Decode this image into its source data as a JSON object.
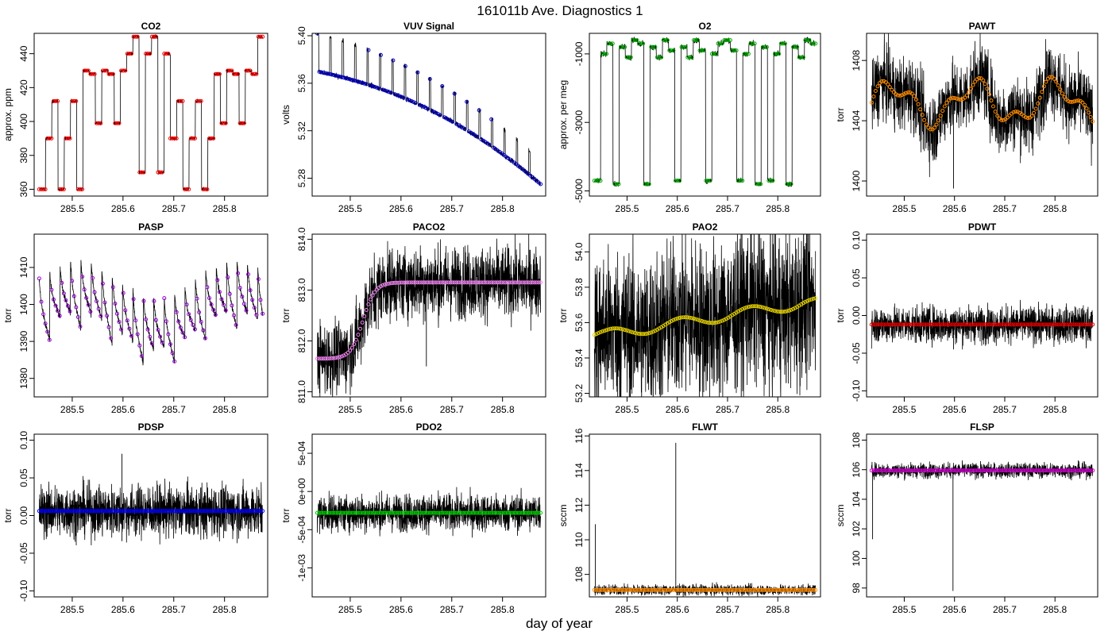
{
  "figure": {
    "title": "161011b   Ave. Diagnostics 1",
    "xlabel": "day of year"
  },
  "chart_data": [
    {
      "type": "line",
      "title": "CO2",
      "ylabel": "approx. ppm",
      "xlim": [
        285.425,
        285.885
      ],
      "ylim": [
        356,
        452
      ],
      "xticks": [
        285.5,
        285.6,
        285.7,
        285.8
      ],
      "xtick_labels": [
        "285.5",
        "285.6",
        "285.7",
        "285.8"
      ],
      "yticks": [
        360,
        380,
        400,
        420,
        440
      ],
      "ytick_labels": [
        "360",
        "380",
        "400",
        "420",
        "440"
      ],
      "marker_color": "#ff0000",
      "pattern": "steps",
      "levels": [
        360,
        399,
        450,
        390,
        430,
        370,
        412,
        428,
        440
      ],
      "noise": 0.5
    },
    {
      "type": "line",
      "title": "VUV Signal",
      "ylabel": "volts",
      "xlim": [
        285.425,
        285.885
      ],
      "ylim": [
        5.265,
        5.402
      ],
      "xticks": [
        285.5,
        285.6,
        285.7,
        285.8
      ],
      "xtick_labels": [
        "285.5",
        "285.6",
        "285.7",
        "285.8"
      ],
      "yticks": [
        5.28,
        5.32,
        5.36,
        5.4
      ],
      "ytick_labels": [
        "5.28",
        "5.32",
        "5.36",
        "5.40"
      ],
      "marker_color": "#0000cc",
      "pattern": "vuv",
      "noise": 0.001
    },
    {
      "type": "line",
      "title": "O2",
      "ylabel": "approx. per meg",
      "xlim": [
        285.425,
        285.885
      ],
      "ylim": [
        -5150,
        -400
      ],
      "xticks": [
        285.5,
        285.6,
        285.7,
        285.8
      ],
      "xtick_labels": [
        "285.5",
        "285.6",
        "285.7",
        "285.8"
      ],
      "yticks": [
        -5000,
        -3000,
        -1000
      ],
      "ytick_labels": [
        "-5000",
        "-3000",
        "-1000"
      ],
      "marker_color": "#00aa00",
      "pattern": "steps",
      "levels": [
        -4700,
        -4800,
        -600,
        -1000,
        -800,
        -900,
        -700,
        -1100
      ],
      "noise": 40
    },
    {
      "type": "line",
      "title": "PAWT",
      "ylabel": "torr",
      "xlim": [
        285.425,
        285.885
      ],
      "ylim": [
        1399,
        1409.8
      ],
      "xticks": [
        285.5,
        285.6,
        285.7,
        285.8
      ],
      "xtick_labels": [
        "285.5",
        "285.6",
        "285.7",
        "285.8"
      ],
      "yticks": [
        1400,
        1404,
        1408
      ],
      "ytick_labels": [
        "1400",
        "1404",
        "1408"
      ],
      "marker_color": "#ff8c00",
      "pattern": "wander",
      "center": 1405.2,
      "amp": 1.2,
      "noise": 1.2,
      "spike": {
        "x": 285.598,
        "y": 1399.5
      }
    },
    {
      "type": "line",
      "title": "PASP",
      "ylabel": "torr",
      "xlim": [
        285.425,
        285.885
      ],
      "ylim": [
        1375,
        1419
      ],
      "xticks": [
        285.5,
        285.6,
        285.7,
        285.8
      ],
      "xtick_labels": [
        "285.5",
        "285.6",
        "285.7",
        "285.8"
      ],
      "yticks": [
        1380,
        1390,
        1400,
        1410
      ],
      "ytick_labels": [
        "1380",
        "1390",
        "1400",
        "1410"
      ],
      "marker_color": "#9400d3",
      "pattern": "pasp",
      "noise": 0.4
    },
    {
      "type": "line",
      "title": "PACO2",
      "ylabel": "torr",
      "xlim": [
        285.425,
        285.885
      ],
      "ylim": [
        810.9,
        814.1
      ],
      "xticks": [
        285.5,
        285.6,
        285.7,
        285.8
      ],
      "xtick_labels": [
        "285.5",
        "285.6",
        "285.7",
        "285.8"
      ],
      "yticks": [
        811.0,
        812.0,
        813.0,
        814.0
      ],
      "ytick_labels": [
        "811.0",
        "812.0",
        "813.0",
        "814.0"
      ],
      "marker_color": "#ee82ee",
      "pattern": "sigmoid",
      "low": 811.65,
      "high": 813.15,
      "mid": 285.525,
      "width": 0.012,
      "noise": 0.35,
      "spike": {
        "x": 285.65,
        "y": 811.5
      }
    },
    {
      "type": "line",
      "title": "PAO2",
      "ylabel": "torr",
      "xlim": [
        285.425,
        285.885
      ],
      "ylim": [
        53.18,
        54.1
      ],
      "xticks": [
        285.5,
        285.6,
        285.7,
        285.8
      ],
      "xtick_labels": [
        "285.5",
        "285.6",
        "285.7",
        "285.8"
      ],
      "yticks": [
        53.2,
        53.4,
        53.6,
        53.8,
        54.0
      ],
      "ytick_labels": [
        "53.2",
        "53.4",
        "53.6",
        "53.8",
        "54.0"
      ],
      "marker_color": "#e6d200",
      "pattern": "ramp",
      "low": 53.53,
      "high": 53.71,
      "noise": 0.22
    },
    {
      "type": "line",
      "title": "PDWT",
      "ylabel": "torr",
      "xlim": [
        285.425,
        285.885
      ],
      "ylim": [
        -0.108,
        0.108
      ],
      "xticks": [
        285.5,
        285.6,
        285.7,
        285.8
      ],
      "xtick_labels": [
        "285.5",
        "285.6",
        "285.7",
        "285.8"
      ],
      "yticks": [
        -0.1,
        -0.05,
        0.0,
        0.05,
        0.1
      ],
      "ytick_labels": [
        "-0.10",
        "-0.05",
        "0.00",
        "0.05",
        "0.10"
      ],
      "marker_color": "#dd0000",
      "pattern": "flat",
      "center": -0.012,
      "noise": 0.012,
      "spike": {
        "x": 285.598,
        "y": -0.045
      }
    },
    {
      "type": "line",
      "title": "PDSP",
      "ylabel": "torr",
      "xlim": [
        285.425,
        285.885
      ],
      "ylim": [
        -0.108,
        0.108
      ],
      "xticks": [
        285.5,
        285.6,
        285.7,
        285.8
      ],
      "xtick_labels": [
        "285.5",
        "285.6",
        "285.7",
        "285.8"
      ],
      "yticks": [
        -0.1,
        -0.05,
        0.0,
        0.05,
        0.1
      ],
      "ytick_labels": [
        "-0.10",
        "-0.05",
        "0.00",
        "0.05",
        "0.10"
      ],
      "marker_color": "#0000ff",
      "pattern": "flat",
      "center": 0.006,
      "noise": 0.017,
      "spike": {
        "x": 285.598,
        "y": 0.082
      },
      "spike2": {
        "x": 285.598,
        "y": -0.034
      }
    },
    {
      "type": "line",
      "title": "PDO2",
      "ylabel": "torr",
      "xlim": [
        285.425,
        285.885
      ],
      "ylim": [
        -0.00138,
        0.00075
      ],
      "xticks": [
        285.5,
        285.6,
        285.7,
        285.8
      ],
      "xtick_labels": [
        "285.5",
        "285.6",
        "285.7",
        "285.8"
      ],
      "yticks": [
        -0.001,
        -0.0005,
        0.0,
        0.0005
      ],
      "ytick_labels": [
        "-1e-03",
        "-5e-04",
        "0e+00",
        "5e-04"
      ],
      "marker_color": "#00cc00",
      "pattern": "flat",
      "center": -0.00028,
      "noise": 0.00012
    },
    {
      "type": "line",
      "title": "FLWT",
      "ylabel": "sccm",
      "xlim": [
        285.425,
        285.885
      ],
      "ylim": [
        106.7,
        116.1
      ],
      "xticks": [
        285.5,
        285.6,
        285.7,
        285.8
      ],
      "xtick_labels": [
        "285.5",
        "285.6",
        "285.7",
        "285.8"
      ],
      "yticks": [
        108,
        110,
        112,
        114,
        116
      ],
      "ytick_labels": [
        "108",
        "110",
        "112",
        "114",
        "116"
      ],
      "marker_color": "#ff8c00",
      "pattern": "flat",
      "center": 107.1,
      "noise": 0.15,
      "spike": {
        "x": 285.597,
        "y": 115.6
      },
      "spike2": {
        "x": 285.437,
        "y": 110.9
      }
    },
    {
      "type": "line",
      "title": "FLSP",
      "ylabel": "sccm",
      "xlim": [
        285.425,
        285.885
      ],
      "ylim": [
        97.4,
        108.4
      ],
      "xticks": [
        285.5,
        285.6,
        285.7,
        285.8
      ],
      "xtick_labels": [
        "285.5",
        "285.6",
        "285.7",
        "285.8"
      ],
      "yticks": [
        98,
        100,
        102,
        104,
        106,
        108
      ],
      "ytick_labels": [
        "98",
        "100",
        "102",
        "104",
        "106",
        "108"
      ],
      "marker_color": "#cc00cc",
      "pattern": "flat",
      "center": 105.95,
      "noise": 0.25,
      "spike": {
        "x": 285.597,
        "y": 97.8
      },
      "spike2": {
        "x": 285.437,
        "y": 101.3
      }
    }
  ]
}
